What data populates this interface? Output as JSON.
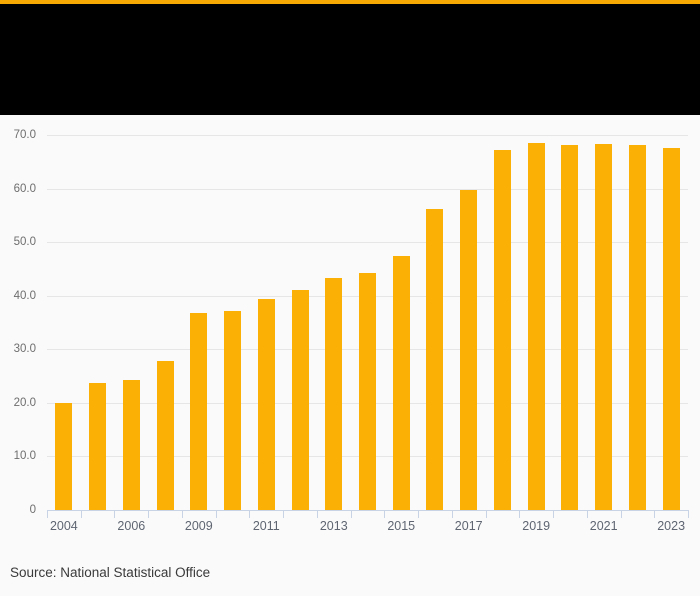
{
  "page": {
    "background": "#FAFAFA",
    "accent_strip_color": "#F5A902",
    "header_bg": "#000000"
  },
  "chart_data": {
    "type": "bar",
    "title": "",
    "xlabel": "",
    "ylabel": "",
    "categories": [
      "2004",
      "2005",
      "2006",
      "2007",
      "2009",
      "2010",
      "2011",
      "2012",
      "2013",
      "2014",
      "2015",
      "2016",
      "2017",
      "2018",
      "2019",
      "2020",
      "2021",
      "2022",
      "2023"
    ],
    "values": [
      20.0,
      23.7,
      24.3,
      27.9,
      36.7,
      37.1,
      39.3,
      41.0,
      43.4,
      44.3,
      47.5,
      56.1,
      59.8,
      67.2,
      68.5,
      68.2,
      68.3,
      68.2,
      67.6
    ],
    "ylim": [
      0,
      70
    ],
    "y_tick_step": 10,
    "y_tick_labels": [
      "70.0",
      "60.0",
      "50.0",
      "40.0",
      "30.0",
      "20.0",
      "10.0",
      "0"
    ],
    "x_tick_labels": [
      "2004",
      "2006",
      "2009",
      "2011",
      "2013",
      "2015",
      "2017",
      "2019",
      "2021",
      "2023"
    ],
    "x_label_every": 2,
    "grid": true,
    "legend_position": "none",
    "bar_color": "#FAB005",
    "gridline_color": "#E6E6E6",
    "axis_color": "#C9D3E6",
    "y_label_color": "#6E6E6E",
    "x_label_color": "#5F6672"
  },
  "footer": {
    "source": "Source: National Statistical Office"
  }
}
